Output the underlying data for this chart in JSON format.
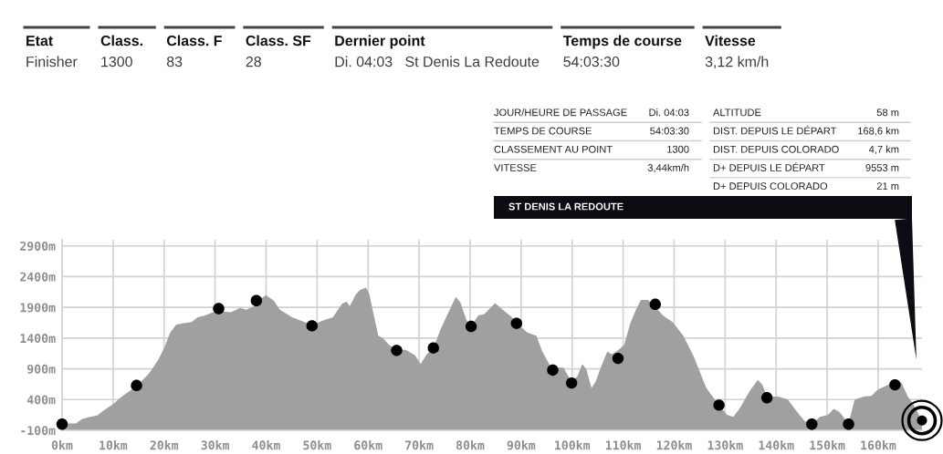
{
  "chart_data": {
    "type": "area",
    "xlim": [
      0,
      168.6
    ],
    "ylim": [
      -100,
      3000
    ],
    "xticks": [
      {
        "value": 0,
        "label": "0km"
      },
      {
        "value": 10,
        "label": "10km"
      },
      {
        "value": 20,
        "label": "20km"
      },
      {
        "value": 30,
        "label": "30km"
      },
      {
        "value": 40,
        "label": "40km"
      },
      {
        "value": 50,
        "label": "50km"
      },
      {
        "value": 60,
        "label": "60km"
      },
      {
        "value": 70,
        "label": "70km"
      },
      {
        "value": 80,
        "label": "80km"
      },
      {
        "value": 90,
        "label": "90km"
      },
      {
        "value": 100,
        "label": "100km"
      },
      {
        "value": 110,
        "label": "110km"
      },
      {
        "value": 120,
        "label": "120km"
      },
      {
        "value": 130,
        "label": "130km"
      },
      {
        "value": 140,
        "label": "140km"
      },
      {
        "value": 150,
        "label": "150km"
      },
      {
        "value": 160,
        "label": "160km"
      }
    ],
    "yticks": [
      {
        "value": -100,
        "label": "-100m"
      },
      {
        "value": 400,
        "label": "400m"
      },
      {
        "value": 900,
        "label": "900m"
      },
      {
        "value": 1400,
        "label": "1400m"
      },
      {
        "value": 1900,
        "label": "1900m"
      },
      {
        "value": 2400,
        "label": "2400m"
      },
      {
        "value": 2900,
        "label": "2900m"
      }
    ],
    "grid": true,
    "series": [
      {
        "color": "#a0a0a0",
        "x": [
          0,
          2.7,
          3.9,
          5.1,
          6.9,
          8.1,
          9.9,
          11.6,
          14.6,
          17.0,
          18.8,
          20.0,
          21.2,
          22.4,
          23.6,
          25.4,
          26.6,
          27.8,
          29.6,
          30.7,
          31.9,
          33.1,
          34.9,
          36.1,
          37.9,
          39.1,
          40.0,
          41.5,
          42.7,
          45.1,
          47.5,
          49.0,
          51.3,
          53.1,
          54.9,
          55.8,
          56.4,
          57.6,
          58.4,
          59.6,
          60.2,
          61.1,
          62.0,
          62.9,
          64.1,
          65.6,
          67.4,
          69.2,
          70.3,
          71.5,
          72.8,
          74.2,
          75.7,
          77.2,
          78.1,
          79.3,
          80.2,
          81.6,
          82.8,
          84.9,
          86.4,
          88.2,
          89.1,
          91.2,
          93.0,
          94.1,
          95.9,
          98.3,
          99.8,
          101.0,
          102.0,
          102.8,
          103.8,
          104.6,
          105.7,
          106.9,
          107.8,
          109.0,
          110.2,
          111.4,
          112.6,
          113.5,
          114.9,
          116.4,
          117.9,
          119.7,
          121.8,
          123.9,
          126.3,
          128.6,
          130.4,
          131.6,
          132.8,
          134.9,
          136.4,
          137.3,
          138.2,
          140.4,
          142.3,
          144.1,
          145.6,
          147.1,
          148.6,
          150.1,
          151.3,
          152.4,
          153.6,
          154.2,
          155.4,
          157.2,
          158.7,
          159.9,
          162.0,
          163.5,
          164.6,
          165.8,
          166.7,
          168.6
        ],
        "values": [
          10,
          10,
          80,
          110,
          140,
          220,
          320,
          440,
          620,
          820,
          1040,
          1240,
          1490,
          1620,
          1640,
          1660,
          1740,
          1760,
          1820,
          1850,
          1830,
          1820,
          1890,
          1860,
          1930,
          2050,
          2100,
          2010,
          1860,
          1740,
          1660,
          1610,
          1690,
          1740,
          1960,
          1990,
          1920,
          2110,
          2180,
          2220,
          2130,
          1780,
          1440,
          1400,
          1290,
          1210,
          1210,
          1120,
          980,
          1140,
          1240,
          1540,
          1810,
          2070,
          1980,
          1690,
          1600,
          1770,
          1790,
          1970,
          1860,
          1740,
          1650,
          1490,
          1440,
          1190,
          920,
          920,
          700,
          770,
          980,
          890,
          590,
          690,
          940,
          1180,
          1140,
          1200,
          1290,
          1640,
          1880,
          2020,
          2020,
          1900,
          1760,
          1660,
          1440,
          1090,
          590,
          330,
          150,
          120,
          250,
          550,
          720,
          640,
          450,
          450,
          400,
          200,
          50,
          10,
          120,
          150,
          250,
          200,
          70,
          20,
          400,
          450,
          460,
          560,
          640,
          720,
          670,
          450,
          350,
          60
        ]
      },
      {
        "type": "scatter",
        "color": "#000000",
        "marker": "circle",
        "x": [
          0,
          14.6,
          30.7,
          38.1,
          49.0,
          65.6,
          72.8,
          80.2,
          89.1,
          96.2,
          99.9,
          109.0,
          116.3,
          128.8,
          138.2,
          147.0,
          154.2,
          163.3
        ],
        "values": [
          0,
          630,
          1880,
          2010,
          1600,
          1200,
          1240,
          1590,
          1640,
          880,
          670,
          1070,
          1950,
          310,
          430,
          0,
          0,
          640
        ]
      }
    ],
    "annotations": [
      "Etat",
      "Finisher",
      "Class.",
      "1300",
      "Class. F",
      "83",
      "Class. SF",
      "28",
      "Dernier point",
      "Di. 04:03   St Denis La Redoute",
      "Temps de course",
      "54:03:30",
      "Vitesse",
      "3,12 km/h",
      "JOUR/HEURE DE PASSAGE",
      "Di. 04:03",
      "TEMPS DE COURSE",
      "54:03:30",
      "CLASSEMENT AU POINT",
      "1300",
      "VITESSE",
      "3,44km/h",
      "ALTITUDE",
      "58 m",
      "DIST. DEPUIS LE DÉPART",
      "168,6 km",
      "DIST. DEPUIS COLORADO",
      "4,7 km",
      "D+ DEPUIS LE DÉPART",
      "9553 m",
      "D+ DEPUIS COLORADO",
      "21 m",
      "ST DENIS LA REDOUTE"
    ]
  }
}
